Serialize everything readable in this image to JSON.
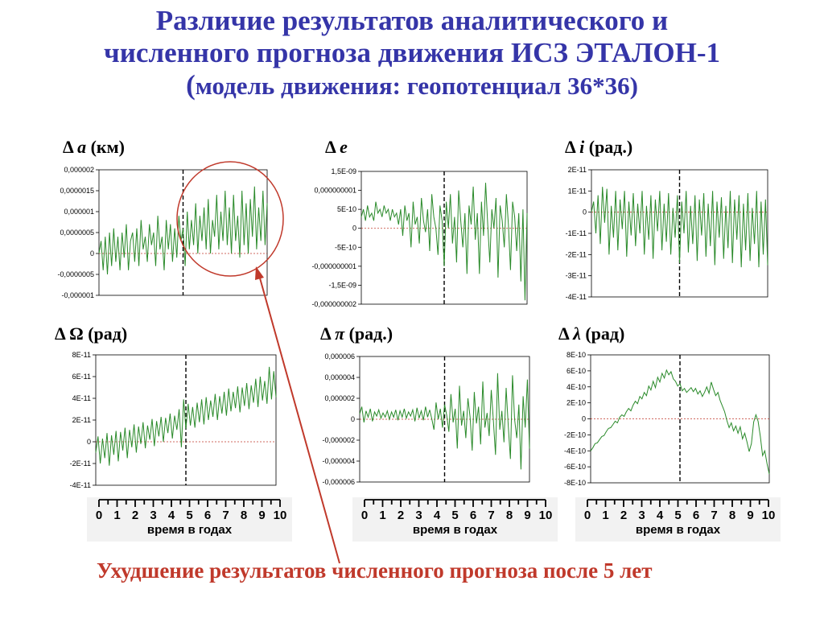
{
  "title": {
    "line1": "Различие результатов аналитического и",
    "line2": "численного прогноза движения ИСЗ ЭТАЛОН-1",
    "line3_open": "(",
    "line3_rest": "модель движения: геопотенциал 36*36)"
  },
  "panel_labels": [
    {
      "sym": "Δ",
      "var": "a",
      "unit": "(км)"
    },
    {
      "sym": "Δ",
      "var": "e",
      "unit": ""
    },
    {
      "sym": "Δ",
      "var": "i",
      "unit": "(рад.)"
    },
    {
      "sym": "Δ",
      "var": "Ω",
      "unit": "(рад)"
    },
    {
      "sym": "Δ",
      "var": "π",
      "unit": "(рад.)"
    },
    {
      "sym": "Δ",
      "var": "λ",
      "unit": "(рад)"
    }
  ],
  "year_axis": {
    "numbers": [
      "0",
      "1",
      "2",
      "3",
      "4",
      "5",
      "6",
      "7",
      "8",
      "9",
      "10"
    ],
    "caption": "время в годах"
  },
  "annotation": "Ухудшение результатов численного прогноза после 5 лет",
  "colors": {
    "title": "#3535a8",
    "series": "#2a8a2a",
    "zero_line": "#c0392b",
    "annotation": "#c0392b"
  },
  "chart_data": [
    {
      "type": "line",
      "ylabel": "Δ a (км)",
      "x_range": [
        0,
        10
      ],
      "ylim": [
        -1e-06,
        2e-06
      ],
      "ytick_labels": [
        "0,000002",
        "0,0000015",
        "0,000001",
        "0,0000005",
        "0",
        "-0,0000005",
        "-0,000001"
      ],
      "yticks": [
        2e-06,
        1.5e-06,
        1e-06,
        5e-07,
        0,
        -5e-07,
        -1e-06
      ],
      "vline_x": 5,
      "grid": false,
      "series": [
        {
          "x_step": 0.125,
          "values": [
            0,
            3e-07,
            -4e-07,
            4e-07,
            -5e-07,
            5e-07,
            -3e-07,
            6e-07,
            -2e-07,
            4e-07,
            -4e-07,
            5e-07,
            -1e-07,
            7e-07,
            -4e-07,
            3e-07,
            5e-07,
            -2e-07,
            6e-07,
            -3e-07,
            8e-07,
            1e-07,
            4e-07,
            -2e-07,
            7e-07,
            2e-07,
            5e-07,
            -3e-07,
            9e-07,
            1e-07,
            4e-07,
            -4e-07,
            8e-07,
            1e-07,
            7e-07,
            -2e-07,
            6e-07,
            -1e-07,
            9e-07,
            3e-07,
            6e-07,
            -3e-07,
            1e-06,
            1e-07,
            8e-07,
            2e-07,
            1.2e-06,
            0,
            9e-07,
            3e-07,
            1.1e-06,
            1e-07,
            1.3e-06,
            0,
            8e-07,
            4e-07,
            1.4e-06,
            1e-07,
            1e-06,
            3e-07,
            1.5e-06,
            2e-07,
            1.1e-06,
            0,
            1.4e-06,
            3e-07,
            9e-07,
            -1e-07,
            1.5e-06,
            2e-07,
            1.2e-06,
            0,
            1.3e-06,
            4e-07,
            1.6e-06,
            1e-07,
            1.1e-06,
            3e-07,
            1.5e-06,
            2e-07,
            1.2e-06
          ]
        }
      ]
    },
    {
      "type": "line",
      "ylabel": "Δ e",
      "x_range": [
        0,
        10
      ],
      "ylim": [
        -2e-09,
        1.5e-09
      ],
      "ytick_labels": [
        "1,5E-09",
        "0,000000001",
        "5E-10",
        "0",
        "-5E-10",
        "-0,000000001",
        "-1,5E-09",
        "-0,000000002"
      ],
      "yticks": [
        1.5e-09,
        1e-09,
        5e-10,
        0,
        -5e-10,
        -1e-09,
        -1.5e-09,
        -2e-09
      ],
      "vline_x": 5,
      "grid": false,
      "series": [
        {
          "x_step": 0.125,
          "values": [
            3e-10,
            5e-10,
            2e-10,
            6e-10,
            3e-10,
            4e-10,
            2e-10,
            7e-10,
            4e-10,
            5e-10,
            3e-10,
            6e-10,
            4e-10,
            5e-10,
            2e-10,
            5e-10,
            3e-10,
            4e-10,
            1e-10,
            5e-10,
            -2e-10,
            6e-10,
            2e-10,
            4e-10,
            -5e-10,
            7e-10,
            1e-10,
            3e-10,
            -4e-10,
            8e-10,
            2e-10,
            -1e-10,
            5e-10,
            -6e-10,
            9e-10,
            3e-10,
            0,
            -7e-10,
            6e-10,
            2e-10,
            -1e-09,
            7e-10,
            0,
            9e-10,
            -4e-10,
            3e-10,
            -9e-10,
            1e-09,
            2e-10,
            -5e-10,
            4e-10,
            -1.2e-09,
            6e-10,
            1e-10,
            1.1e-09,
            -3e-10,
            4e-10,
            -1.2e-09,
            7e-10,
            -2e-10,
            1.2e-09,
            1e-10,
            -9e-10,
            5e-10,
            0,
            8e-10,
            -1.3e-09,
            6e-10,
            2e-10,
            -5e-10,
            9e-10,
            1e-10,
            -1.1e-09,
            7e-10,
            3e-10,
            -6e-10,
            4e-10,
            -1.4e-09,
            5e-10,
            -1.9e-09,
            4e-10
          ]
        }
      ]
    },
    {
      "type": "line",
      "ylabel": "Δ i (рад.)",
      "x_range": [
        0,
        10
      ],
      "ylim": [
        -4e-11,
        2e-11
      ],
      "ytick_labels": [
        "2E-11",
        "1E-11",
        "0",
        "-1E-11",
        "-2E-11",
        "-3E-11",
        "-4E-11"
      ],
      "yticks": [
        2e-11,
        1e-11,
        0,
        -1e-11,
        -2e-11,
        -3e-11,
        -4e-11
      ],
      "vline_x": 5,
      "grid": false,
      "series": [
        {
          "x_step": 0.125,
          "values": [
            0,
            5e-12,
            -1e-11,
            8e-12,
            -1.5e-11,
            1.2e-11,
            -5e-12,
            1.1e-11,
            -2e-11,
            3e-12,
            -1.2e-11,
            1e-11,
            -1.8e-11,
            6e-12,
            -8e-12,
            1e-11,
            -2.1e-11,
            5e-12,
            -1.1e-11,
            9e-12,
            -1.6e-11,
            4e-12,
            -1e-11,
            1e-11,
            -2e-11,
            3e-12,
            -1.3e-11,
            8e-12,
            -2.2e-11,
            6e-12,
            -9e-12,
            1e-11,
            -1.8e-11,
            4e-12,
            -1.4e-11,
            9e-12,
            -2e-11,
            2e-12,
            -1.2e-11,
            8e-12,
            -2.4e-11,
            5e-12,
            -1e-11,
            1e-11,
            -1.9e-11,
            3e-12,
            -1.5e-11,
            8e-12,
            -2.3e-11,
            6e-12,
            -1.1e-11,
            9e-12,
            -2.1e-11,
            4e-12,
            -1.6e-11,
            1e-11,
            -2.5e-11,
            5e-12,
            -1.2e-11,
            7e-12,
            -2.2e-11,
            3e-12,
            -1.7e-11,
            1e-11,
            -2.4e-11,
            6e-12,
            -1.3e-11,
            8e-12,
            -2.6e-11,
            4e-12,
            -1.8e-11,
            9e-12,
            -2.3e-11,
            2e-12,
            -1.5e-11,
            1e-11,
            -2.6e-11,
            5e-12,
            -2e-11,
            6e-12,
            -2.5e-11
          ]
        }
      ]
    },
    {
      "type": "line",
      "ylabel": "Δ Ω (рад)",
      "x_range": [
        0,
        10
      ],
      "ylim": [
        -4e-11,
        8e-11
      ],
      "ytick_labels": [
        "8E-11",
        "6E-11",
        "4E-11",
        "2E-11",
        "0",
        "-2E-11",
        "-4E-11"
      ],
      "yticks": [
        8e-11,
        6e-11,
        4e-11,
        2e-11,
        0,
        -2e-11,
        -4e-11
      ],
      "vline_x": 5,
      "grid": false,
      "series": [
        {
          "x_step": 0.125,
          "values": [
            -1e-11,
            5e-12,
            -2e-11,
            3e-12,
            -1.5e-11,
            8e-12,
            -2.2e-11,
            6e-12,
            -1.2e-11,
            1e-11,
            -1.8e-11,
            9e-12,
            -8e-12,
            1.3e-11,
            -1.5e-11,
            1.1e-11,
            -5e-12,
            1.6e-11,
            -1e-11,
            1.4e-11,
            -2e-12,
            1.8e-11,
            -6e-12,
            1.5e-11,
            2e-12,
            2.1e-11,
            -4e-12,
            1.9e-11,
            5e-12,
            2.3e-11,
            0,
            2.2e-11,
            8e-12,
            2.6e-11,
            3e-12,
            2.4e-11,
            1.1e-11,
            3e-11,
            -5e-12,
            3.9e-11,
            1.2e-11,
            3.5e-11,
            1.5e-11,
            3.2e-11,
            1.3e-11,
            3.6e-11,
            1.8e-11,
            3.9e-11,
            1.6e-11,
            4.1e-11,
            2e-11,
            3.8e-11,
            2.3e-11,
            4.4e-11,
            2e-11,
            4.2e-11,
            2.6e-11,
            4.6e-11,
            2.4e-11,
            4.9e-11,
            2.8e-11,
            4.6e-11,
            3.1e-11,
            5.1e-11,
            2.7e-11,
            5e-11,
            3.3e-11,
            5.4e-11,
            3e-11,
            5.2e-11,
            3.6e-11,
            5.8e-11,
            3.2e-11,
            6e-11,
            3.8e-11,
            5.6e-11,
            3.5e-11,
            6.9e-11,
            3.9e-11,
            6.5e-11,
            4.1e-11
          ]
        }
      ]
    },
    {
      "type": "line",
      "ylabel": "Δ π (рад.)",
      "x_range": [
        0,
        10
      ],
      "ylim": [
        -6e-06,
        6e-06
      ],
      "ytick_labels": [
        "0,000006",
        "0,000004",
        "0,000002",
        "0",
        "-0,000002",
        "-0,000004",
        "-0,000006"
      ],
      "yticks": [
        6e-06,
        4e-06,
        2e-06,
        0,
        -2e-06,
        -4e-06,
        -6e-06
      ],
      "vline_x": 5,
      "grid": false,
      "series": [
        {
          "x_step": 0.125,
          "values": [
            5e-07,
            1.2e-06,
            -3e-07,
            8e-07,
            2e-07,
            1e-06,
            -2e-07,
            7e-07,
            3e-07,
            9e-07,
            1e-07,
            6e-07,
            2e-07,
            8e-07,
            0,
            7e-07,
            2e-07,
            9e-07,
            -1e-07,
            8e-07,
            2e-07,
            1e-06,
            1e-07,
            7e-07,
            3e-07,
            9e-07,
            -2e-07,
            1.1e-06,
            1e-07,
            8e-07,
            -1e-07,
            1.2e-06,
            2e-07,
            9e-07,
            0,
            -1e-06,
            1.6e-06,
            0,
            1e-06,
            -8e-07,
            1.4e-06,
            4e-07,
            -1.2e-06,
            2.4e-06,
            -3e-07,
            1e-06,
            -2.8e-06,
            3.2e-06,
            -6e-07,
            8e-07,
            -1.8e-06,
            2e-06,
            2e-07,
            -3e-06,
            2.6e-06,
            -4e-07,
            1.2e-06,
            -2.4e-06,
            3.6e-06,
            -8e-07,
            6e-07,
            -1.6e-06,
            2.8e-06,
            -2e-07,
            -3.4e-06,
            4.4e-06,
            -1e-06,
            8e-07,
            -2.2e-06,
            3e-06,
            -6e-07,
            -3.8e-06,
            4.2e-06,
            0,
            -1.8e-06,
            1.4e-06,
            -4.8e-06,
            2.2e-06,
            -8e-07,
            3.8e-06,
            -2.8e-06
          ]
        }
      ]
    },
    {
      "type": "line",
      "ylabel": "Δ λ (рад)",
      "x_range": [
        0,
        10
      ],
      "ylim": [
        -8e-10,
        8e-10
      ],
      "ytick_labels": [
        "8E-10",
        "6E-10",
        "4E-10",
        "2E-10",
        "0",
        "-2E-10",
        "-4E-10",
        "-6E-10",
        "-8E-10"
      ],
      "yticks": [
        8e-10,
        6e-10,
        4e-10,
        2e-10,
        0,
        -2e-10,
        -4e-10,
        -6e-10,
        -8e-10
      ],
      "vline_x": 5,
      "grid": false,
      "series": [
        {
          "x_step": 0.125,
          "values": [
            -4e-10,
            -3.6e-10,
            -3.1e-10,
            -3e-10,
            -2.6e-10,
            -2.2e-10,
            -2.1e-10,
            -1.6e-10,
            -1.2e-10,
            -1.1e-10,
            -7e-11,
            -3e-11,
            -5e-11,
            2e-11,
            5e-11,
            3e-11,
            9e-11,
            1.3e-10,
            1e-10,
            1.7e-10,
            2.2e-10,
            1.9e-10,
            2.8e-10,
            2.5e-10,
            3.3e-10,
            2.9e-10,
            4.1e-10,
            3.6e-10,
            4.7e-10,
            3.9e-10,
            5.2e-10,
            4.6e-10,
            5.7e-10,
            5.1e-10,
            6.1e-10,
            5.5e-10,
            5.9e-10,
            5e-10,
            4.7e-10,
            4.1e-10,
            4.4e-10,
            3.5e-10,
            3.8e-10,
            3.3e-10,
            3.6e-10,
            3.9e-10,
            3.4e-10,
            3.8e-10,
            3.1e-10,
            3.5e-10,
            2.8e-10,
            3.3e-10,
            4e-10,
            3.2e-10,
            4.6e-10,
            3.7e-10,
            2.9e-10,
            3.3e-10,
            2.3e-10,
            1.6e-10,
            9e-11,
            -2e-11,
            -1.1e-10,
            -5e-11,
            -1.5e-10,
            -9e-11,
            -1.8e-10,
            -1e-10,
            -2.5e-10,
            -1.8e-10,
            -2.9e-10,
            -4.1e-10,
            -3.1e-10,
            -4e-11,
            5e-11,
            -3e-11,
            -2.2e-10,
            -4.6e-10,
            -4e-10,
            -5.6e-10,
            -6.9e-10
          ]
        }
      ]
    }
  ]
}
